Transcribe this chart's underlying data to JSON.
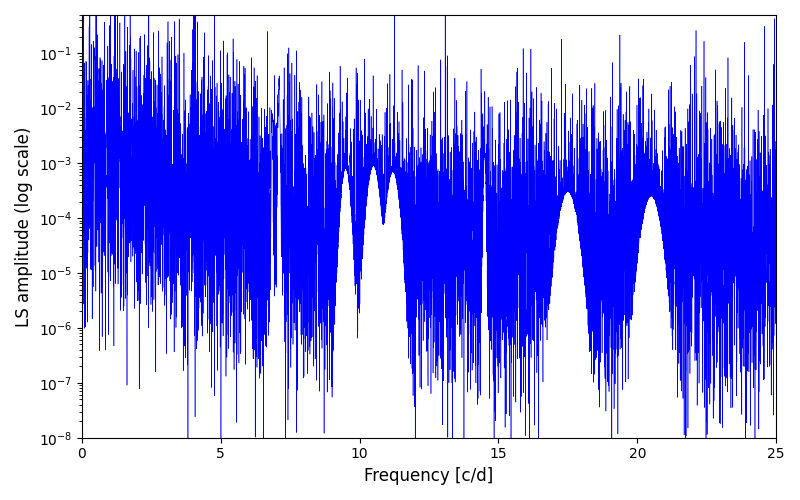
{
  "xlabel": "Frequency [c/d]",
  "ylabel": "LS amplitude (log scale)",
  "line_color": "#0000ff",
  "background_color": "#ffffff",
  "xlim": [
    0,
    25
  ],
  "ylim": [
    1e-08,
    0.5
  ],
  "n_points": 8000,
  "seed": 12345,
  "figsize": [
    8.0,
    5.0
  ],
  "dpi": 100,
  "xticks": [
    0,
    5,
    10,
    15,
    20,
    25
  ]
}
